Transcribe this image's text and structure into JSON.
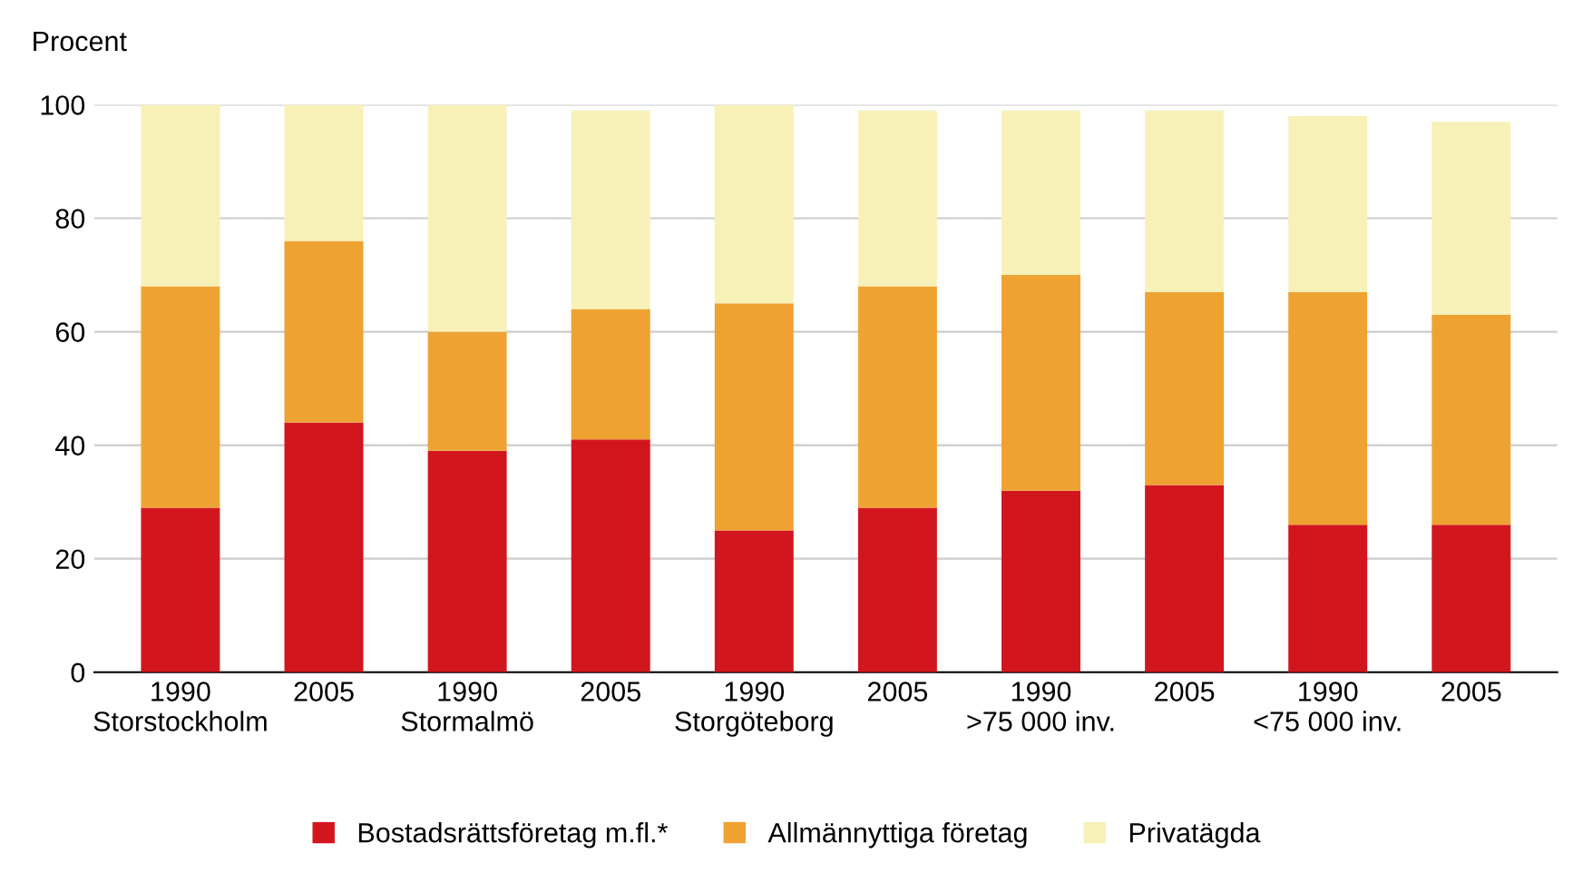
{
  "chart_data": {
    "type": "bar",
    "stacked": true,
    "ylabel": "Procent",
    "categories": [
      "1990\nStorstockholm",
      "2005",
      "1990\nStormalmö",
      "2005",
      "1990\nStorgöteborg",
      "2005",
      "1990\n>75 000 inv.",
      "2005",
      "1990\n<75 000 inv.",
      "2005"
    ],
    "series": [
      {
        "name": "Bostadsrättsföretag m.fl.*",
        "color": "#d2161e",
        "values": [
          29,
          44,
          39,
          41,
          25,
          29,
          32,
          33,
          26,
          26
        ]
      },
      {
        "name": "Allmännyttiga företag",
        "color": "#eea232",
        "values": [
          39,
          32,
          21,
          23,
          40,
          39,
          38,
          34,
          41,
          37
        ]
      },
      {
        "name": "Privatägda",
        "color": "#f7f1b8",
        "values": [
          32,
          24,
          40,
          35,
          35,
          31,
          29,
          32,
          31,
          34
        ]
      }
    ],
    "ylim": [
      0,
      100
    ],
    "yticks": [
      0,
      20,
      40,
      60,
      80,
      100
    ],
    "grid": "y",
    "legend": "bottom"
  }
}
